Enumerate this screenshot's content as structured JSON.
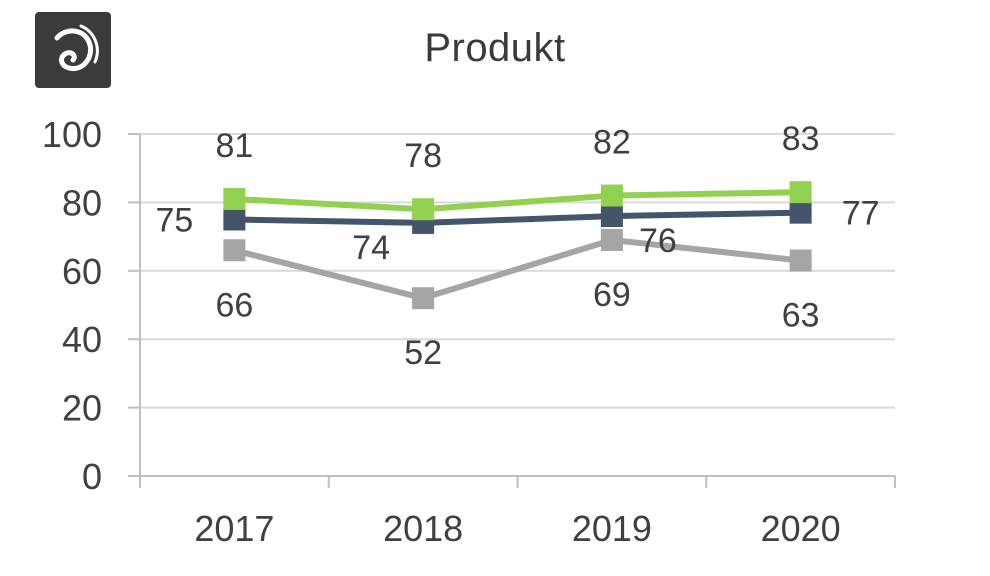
{
  "chart_data": {
    "type": "line",
    "title": "Produkt",
    "categories": [
      "2017",
      "2018",
      "2019",
      "2020"
    ],
    "ylim": [
      0,
      100
    ],
    "yticks": [
      0,
      20,
      40,
      60,
      80,
      100
    ],
    "grid": true,
    "series": [
      {
        "color": "#a5a5a5",
        "values": [
          66,
          52,
          69,
          63
        ]
      },
      {
        "color": "#44546a",
        "values": [
          75,
          74,
          76,
          77
        ]
      },
      {
        "color": "#92d050",
        "values": [
          81,
          78,
          82,
          83
        ]
      }
    ]
  }
}
